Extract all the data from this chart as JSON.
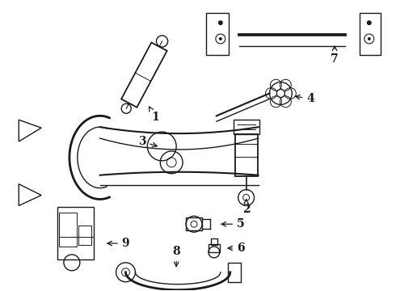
{
  "bg_color": "#ffffff",
  "line_color": "#1a1a1a",
  "label_color": "#111111",
  "figsize": [
    4.9,
    3.6
  ],
  "dpi": 100
}
